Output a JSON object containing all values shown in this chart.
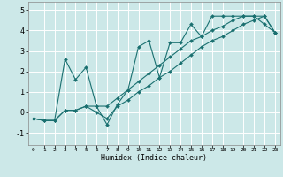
{
  "title": "",
  "xlabel": "Humidex (Indice chaleur)",
  "ylabel": "",
  "background_color": "#cce8e8",
  "grid_color": "#ffffff",
  "line_color": "#1a7070",
  "xlim": [
    -0.5,
    23.5
  ],
  "ylim": [
    -1.6,
    5.4
  ],
  "xticks": [
    0,
    1,
    2,
    3,
    4,
    5,
    6,
    7,
    8,
    9,
    10,
    11,
    12,
    13,
    14,
    15,
    16,
    17,
    18,
    19,
    20,
    21,
    22,
    23
  ],
  "yticks": [
    -1,
    0,
    1,
    2,
    3,
    4,
    5
  ],
  "line1_x": [
    0,
    1,
    2,
    3,
    4,
    5,
    6,
    7,
    8,
    9,
    10,
    11,
    12,
    13,
    14,
    15,
    16,
    17,
    18,
    19,
    20,
    21,
    22,
    23
  ],
  "line1_y": [
    -0.3,
    -0.4,
    -0.4,
    2.6,
    1.6,
    2.2,
    0.3,
    -0.6,
    0.4,
    1.1,
    3.2,
    3.5,
    1.7,
    3.4,
    3.4,
    4.3,
    3.7,
    4.7,
    4.7,
    4.7,
    4.7,
    4.7,
    4.3,
    3.9
  ],
  "line2_x": [
    0,
    1,
    2,
    3,
    4,
    5,
    6,
    7,
    8,
    9,
    10,
    11,
    12,
    13,
    14,
    15,
    16,
    17,
    18,
    19,
    20,
    21,
    22,
    23
  ],
  "line2_y": [
    -0.3,
    -0.4,
    -0.4,
    0.1,
    0.1,
    0.3,
    0.3,
    0.3,
    0.7,
    1.1,
    1.5,
    1.9,
    2.3,
    2.7,
    3.1,
    3.5,
    3.7,
    4.0,
    4.2,
    4.5,
    4.7,
    4.7,
    4.7,
    3.9
  ],
  "line3_x": [
    0,
    1,
    2,
    3,
    4,
    5,
    6,
    7,
    8,
    9,
    10,
    11,
    12,
    13,
    14,
    15,
    16,
    17,
    18,
    19,
    20,
    21,
    22,
    23
  ],
  "line3_y": [
    -0.3,
    -0.4,
    -0.4,
    0.1,
    0.1,
    0.3,
    0.0,
    -0.3,
    0.3,
    0.6,
    1.0,
    1.3,
    1.7,
    2.0,
    2.4,
    2.8,
    3.2,
    3.5,
    3.7,
    4.0,
    4.3,
    4.5,
    4.7,
    3.9
  ],
  "xlabel_fontsize": 6,
  "xtick_fontsize": 4.5,
  "ytick_fontsize": 6,
  "marker_size": 2.0,
  "line_width": 0.8
}
